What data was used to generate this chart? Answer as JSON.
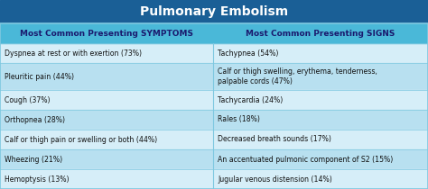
{
  "title": "Pulmonary Embolism",
  "title_bg": "#1a5f96",
  "title_color": "#ffffff",
  "header_bg": "#4ab8d8",
  "header_color": "#1a1a6e",
  "col1_header": "Most Common Presenting SYMPTOMS",
  "col2_header": "Most Common Presenting SIGNS",
  "row_bg_light": "#d6eef8",
  "row_bg_mid": "#b8e0f0",
  "outer_bg": "#a0d4ec",
  "border_color": "#7ec8e0",
  "text_color": "#111111",
  "symptoms": [
    "Dyspnea at rest or with exertion (73%)",
    "Pleuritic pain (44%)",
    "Cough (37%)",
    "Orthopnea (28%)",
    "Calf or thigh pain or swelling or both (44%)",
    "Wheezing (21%)",
    "Hemoptysis (13%)"
  ],
  "signs": [
    "Tachypnea (54%)",
    "Calf or thigh swelling, erythema, tenderness,\npalpable cords (47%)",
    "Tachycardia (24%)",
    "Rales (18%)",
    "Decreased breath sounds (17%)",
    "An accentuated pulmonic component of S2 (15%)",
    "Jugular venous distension (14%)"
  ],
  "fig_w": 4.74,
  "fig_h": 2.1,
  "dpi": 100
}
